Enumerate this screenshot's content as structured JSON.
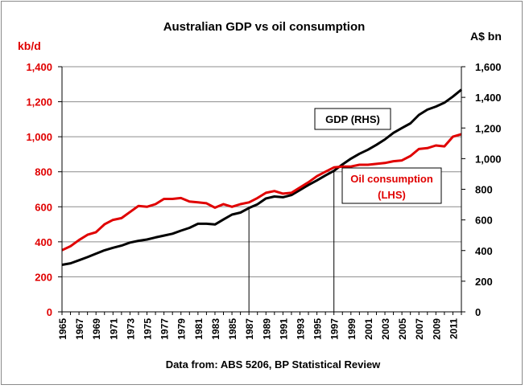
{
  "chart_data": {
    "type": "line",
    "title": "Australian GDP vs oil consumption",
    "source_note": "Data from: ABS 5206, BP Statistical Review",
    "left_axis": {
      "unit_label": "kb/d",
      "min": 0,
      "max": 1400,
      "step": 200,
      "color": "#e00000"
    },
    "right_axis": {
      "unit_label": "A$ bn",
      "min": 0,
      "max": 1600,
      "step": 200,
      "color": "#000000"
    },
    "x_tick_labels": [
      "1965",
      "1967",
      "1969",
      "1971",
      "1973",
      "1975",
      "1977",
      "1979",
      "1981",
      "1983",
      "1985",
      "1987",
      "1989",
      "1991",
      "1993",
      "1995",
      "1997",
      "1999",
      "2001",
      "2003",
      "2005",
      "2007",
      "2009",
      "2011"
    ],
    "x": [
      1965,
      1966,
      1967,
      1968,
      1969,
      1970,
      1971,
      1972,
      1973,
      1974,
      1975,
      1976,
      1977,
      1978,
      1979,
      1980,
      1981,
      1982,
      1983,
      1984,
      1985,
      1986,
      1987,
      1988,
      1989,
      1990,
      1991,
      1992,
      1993,
      1994,
      1995,
      1996,
      1997,
      1998,
      1999,
      2000,
      2001,
      2002,
      2003,
      2004,
      2005,
      2006,
      2007,
      2008,
      2009,
      2010,
      2011,
      2012
    ],
    "series": [
      {
        "name": "GDP (RHS)",
        "axis": "right",
        "color": "#000000",
        "values": [
          307,
          317,
          337,
          357,
          380,
          402,
          418,
          432,
          452,
          464,
          472,
          486,
          498,
          510,
          530,
          548,
          575,
          575,
          570,
          603,
          635,
          648,
          678,
          702,
          740,
          753,
          748,
          762,
          795,
          828,
          858,
          890,
          920,
          962,
          1000,
          1032,
          1058,
          1090,
          1125,
          1168,
          1200,
          1230,
          1285,
          1320,
          1340,
          1365,
          1405,
          1450
        ]
      },
      {
        "name": "Oil consumption (LHS)",
        "axis": "left",
        "color": "#e00000",
        "values": [
          352,
          375,
          410,
          440,
          455,
          500,
          525,
          535,
          570,
          605,
          600,
          615,
          645,
          645,
          650,
          630,
          625,
          620,
          595,
          615,
          600,
          615,
          625,
          650,
          680,
          690,
          675,
          680,
          710,
          740,
          775,
          800,
          825,
          830,
          830,
          840,
          840,
          845,
          850,
          860,
          865,
          890,
          930,
          935,
          950,
          945,
          1000,
          1015
        ]
      }
    ],
    "vlines": [
      1987,
      1997
    ],
    "annotations": [
      {
        "lines": [
          "GDP (RHS)"
        ],
        "color": "#000000"
      },
      {
        "lines": [
          "Oil consumption",
          "(LHS)"
        ],
        "color": "#e00000"
      }
    ],
    "grid": "horizontal"
  }
}
